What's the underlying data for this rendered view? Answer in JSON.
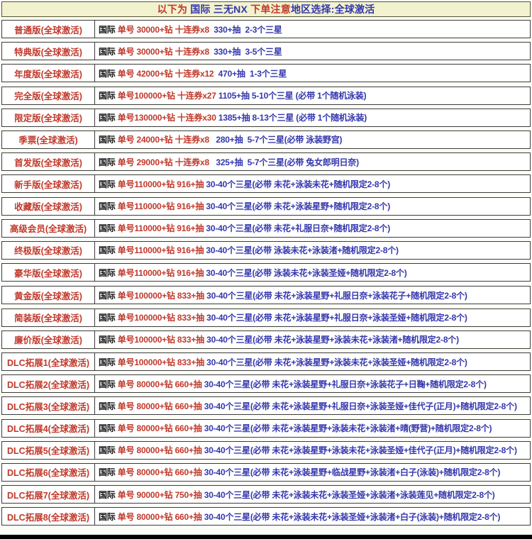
{
  "colors": {
    "red": "#c0392b",
    "blue": "#3437ad",
    "black": "#151515",
    "header_bg": "#f2f2cf",
    "header_border": "#55552c",
    "row_border": "#3c3c3c"
  },
  "header": {
    "segments": [
      {
        "c": "red",
        "t": "以下为 "
      },
      {
        "c": "blue",
        "t": "国际 三无NX "
      },
      {
        "c": "red",
        "t": "下单注意"
      },
      {
        "c": "blue",
        "t": "地区选择:全球激活"
      }
    ]
  },
  "table": {
    "rows": [
      {
        "label": "普通版(全球激活)",
        "group_break": false,
        "segments": [
          {
            "c": "black",
            "t": "国际 "
          },
          {
            "c": "red",
            "t": "单号 30000+钻 十连券x8"
          },
          {
            "c": "blue",
            "t": "  330+抽  2-3个三星"
          }
        ]
      },
      {
        "label": "特典版(全球激活)",
        "group_break": false,
        "segments": [
          {
            "c": "black",
            "t": "国际 "
          },
          {
            "c": "red",
            "t": "单号 30000+钻 十连券x8"
          },
          {
            "c": "blue",
            "t": "  330+抽  3-5个三星"
          }
        ]
      },
      {
        "label": "年度版(全球激活)",
        "group_break": false,
        "segments": [
          {
            "c": "black",
            "t": "国际 "
          },
          {
            "c": "red",
            "t": "单号 42000+钻 十连券x12"
          },
          {
            "c": "blue",
            "t": "  470+抽  1-3个三星"
          }
        ]
      },
      {
        "label": "完全版(全球激活)",
        "group_break": false,
        "segments": [
          {
            "c": "black",
            "t": "国际 "
          },
          {
            "c": "red",
            "t": "单号100000+钻 十连券x27"
          },
          {
            "c": "blue",
            "t": " 1105+抽 5-10个三星 (必带 1个随机泳装)"
          }
        ]
      },
      {
        "label": "限定版(全球激活)",
        "group_break": false,
        "segments": [
          {
            "c": "black",
            "t": "国际 "
          },
          {
            "c": "red",
            "t": "单号130000+钻 十连券x30"
          },
          {
            "c": "blue",
            "t": " 1385+抽 8-13个三星 (必带 1个随机泳装)"
          }
        ]
      },
      {
        "label": "季票(全球激活)",
        "group_break": false,
        "segments": [
          {
            "c": "black",
            "t": "国际 "
          },
          {
            "c": "red",
            "t": "单号 24000+钻 十连券x8"
          },
          {
            "c": "blue",
            "t": "   280+抽  5-7个三星(必带 泳装野宫)"
          }
        ]
      },
      {
        "label": "首发版(全球激活)",
        "group_break": false,
        "segments": [
          {
            "c": "black",
            "t": "国际 "
          },
          {
            "c": "red",
            "t": "单号 29000+钻 十连券x8"
          },
          {
            "c": "blue",
            "t": "   325+抽  5-7个三星(必带 兔女郎明日奈)"
          }
        ]
      },
      {
        "label": "新手版(全球激活)",
        "group_break": false,
        "segments": [
          {
            "c": "black",
            "t": "国际 "
          },
          {
            "c": "red",
            "t": "单号110000+钻 916+抽 "
          },
          {
            "c": "blue",
            "t": "30-40个三星(必带 未花+泳装未花+随机限定2-8个)"
          }
        ]
      },
      {
        "label": "收藏版(全球激活)",
        "group_break": false,
        "segments": [
          {
            "c": "black",
            "t": "国际 "
          },
          {
            "c": "red",
            "t": "单号110000+钻 916+抽 "
          },
          {
            "c": "blue",
            "t": "30-40个三星(必带 未花+泳装星野+随机限定2-8个)"
          }
        ]
      },
      {
        "label": "高级会员(全球激活)",
        "group_break": false,
        "segments": [
          {
            "c": "black",
            "t": "国际 "
          },
          {
            "c": "red",
            "t": "单号110000+钻 916+抽 "
          },
          {
            "c": "blue",
            "t": "30-40个三星(必带 未花+礼服日奈+随机限定2-8个)"
          }
        ]
      },
      {
        "label": "终极版(全球激活)",
        "group_break": false,
        "segments": [
          {
            "c": "black",
            "t": "国际 "
          },
          {
            "c": "red",
            "t": "单号110000+钻 916+抽 "
          },
          {
            "c": "blue",
            "t": "30-40个三星(必带 泳装未花+泳装渚+随机限定2-8个)"
          }
        ]
      },
      {
        "label": "豪华版(全球激活)",
        "group_break": false,
        "segments": [
          {
            "c": "black",
            "t": "国际 "
          },
          {
            "c": "red",
            "t": "单号110000+钻 916+抽 "
          },
          {
            "c": "blue",
            "t": "30-40个三星(必带 泳装未花+泳装圣娅+随机限定2-8个)"
          }
        ]
      },
      {
        "label": "黄金版(全球激活)",
        "group_break": true,
        "segments": [
          {
            "c": "black",
            "t": "国际 "
          },
          {
            "c": "red",
            "t": "单号100000+钻 833+抽 "
          },
          {
            "c": "blue",
            "t": "30-40个三星(必带 未花+泳装星野+礼服日奈+泳装花子+随机限定2-8个)"
          }
        ]
      },
      {
        "label": "简装版(全球激活)",
        "group_break": false,
        "segments": [
          {
            "c": "black",
            "t": "国际 "
          },
          {
            "c": "red",
            "t": "单号100000+钻 833+抽 "
          },
          {
            "c": "blue",
            "t": "30-40个三星(必带 未花+泳装星野+礼服日奈+泳装圣娅+随机限定2-8个)"
          }
        ]
      },
      {
        "label": "廉价版(全球激活)",
        "group_break": false,
        "segments": [
          {
            "c": "black",
            "t": "国际 "
          },
          {
            "c": "red",
            "t": "单号100000+钻 833+抽 "
          },
          {
            "c": "blue",
            "t": "30-40个三星(必带 未花+泳装星野+泳装未花+泳装渚+随机限定2-8个)"
          }
        ]
      },
      {
        "label": "DLC拓展1(全球激活)",
        "group_break": false,
        "segments": [
          {
            "c": "black",
            "t": "国际 "
          },
          {
            "c": "red",
            "t": "单号100000+钻 833+抽 "
          },
          {
            "c": "blue",
            "t": "30-40个三星(必带 未花+泳装星野+泳装未花+泳装圣娅+随机限定2-8个)"
          }
        ]
      },
      {
        "label": "DLC拓展2(全球激活)",
        "group_break": false,
        "segments": [
          {
            "c": "black",
            "t": "国际 "
          },
          {
            "c": "red",
            "t": "单号 80000+钻 660+抽 "
          },
          {
            "c": "blue",
            "t": "30-40个三星(必带 未花+泳装星野+礼服日奈+泳装花子+日鞠+随机限定2-8个)"
          }
        ]
      },
      {
        "label": "DLC拓展3(全球激活)",
        "group_break": false,
        "segments": [
          {
            "c": "black",
            "t": "国际 "
          },
          {
            "c": "red",
            "t": "单号 80000+钻 660+抽 "
          },
          {
            "c": "blue",
            "t": "30-40个三星(必带 未花+泳装星野+礼服日奈+泳装圣娅+佳代子(正月)+随机限定2-8个)"
          }
        ]
      },
      {
        "label": "DLC拓展4(全球激活)",
        "group_break": false,
        "segments": [
          {
            "c": "black",
            "t": "国际 "
          },
          {
            "c": "red",
            "t": "单号 80000+钻 660+抽 "
          },
          {
            "c": "blue",
            "t": "30-40个三星(必带 未花+泳装星野+泳装未花+泳装渚+晴(野营)+随机限定2-8个)"
          }
        ]
      },
      {
        "label": "DLC拓展5(全球激活)",
        "group_break": false,
        "segments": [
          {
            "c": "black",
            "t": "国际 "
          },
          {
            "c": "red",
            "t": "单号 80000+钻 660+抽 "
          },
          {
            "c": "blue",
            "t": "30-40个三星(必带 未花+泳装星野+泳装未花+泳装圣娅+佳代子(正月)+随机限定2-8个)"
          }
        ]
      },
      {
        "label": "DLC拓展6(全球激活)",
        "group_break": false,
        "segments": [
          {
            "c": "black",
            "t": "国际 "
          },
          {
            "c": "red",
            "t": "单号 80000+钻 660+抽 "
          },
          {
            "c": "blue",
            "t": "30-40个三星(必带 未花+泳装星野+临战星野+泳装渚+白子(泳装)+随机限定2-8个)"
          }
        ]
      },
      {
        "label": "DLC拓展7(全球激活)",
        "group_break": false,
        "segments": [
          {
            "c": "black",
            "t": "国际 "
          },
          {
            "c": "red",
            "t": "单号 90000+钻 750+抽 "
          },
          {
            "c": "blue",
            "t": "30-40个三星(必带 未花+泳装未花+泳装圣娅+泳装渚+泳装莲见+随机限定2-8个)"
          }
        ]
      },
      {
        "label": "DLC拓展8(全球激活)",
        "group_break": false,
        "segments": [
          {
            "c": "black",
            "t": "国际 "
          },
          {
            "c": "red",
            "t": "单号 80000+钻 660+抽 "
          },
          {
            "c": "blue",
            "t": "30-40个三星(必带 未花+泳装未花+泳装圣娅+泳装渚+白子(泳装)+随机限定2-8个)"
          }
        ]
      }
    ]
  }
}
